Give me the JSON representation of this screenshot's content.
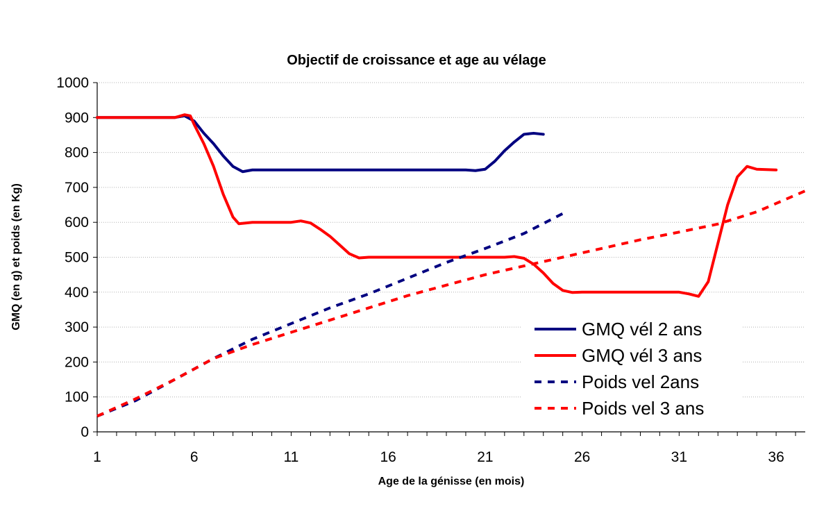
{
  "chart_data": {
    "type": "line",
    "title": "Objectif de croissance et age au vélage",
    "xlabel": "Age de la génisse (en mois)",
    "ylabel": "GMQ (en g) et poids (en Kg)",
    "xlim": [
      1,
      37.5
    ],
    "ylim": [
      0,
      1000
    ],
    "x_ticks": [
      1,
      6,
      11,
      16,
      21,
      26,
      31,
      36
    ],
    "y_ticks": [
      0,
      100,
      200,
      300,
      400,
      500,
      600,
      700,
      800,
      900,
      1000
    ],
    "grid": "horizontal",
    "legend_position": "bottom-right",
    "series": [
      {
        "name": "GMQ vél 2 ans",
        "color": "#000080",
        "style": "solid",
        "points": [
          [
            1,
            900
          ],
          [
            5,
            900
          ],
          [
            5.5,
            905
          ],
          [
            6,
            890
          ],
          [
            6.5,
            855
          ],
          [
            7,
            825
          ],
          [
            7.5,
            790
          ],
          [
            8,
            760
          ],
          [
            8.5,
            745
          ],
          [
            9,
            750
          ],
          [
            20,
            750
          ],
          [
            20.5,
            748
          ],
          [
            21,
            752
          ],
          [
            21.5,
            775
          ],
          [
            22,
            805
          ],
          [
            22.5,
            830
          ],
          [
            23,
            852
          ],
          [
            23.5,
            855
          ],
          [
            24,
            852
          ]
        ]
      },
      {
        "name": "GMQ vél 3 ans",
        "color": "#ff0000",
        "style": "solid",
        "points": [
          [
            1,
            900
          ],
          [
            5,
            900
          ],
          [
            5.5,
            908
          ],
          [
            5.8,
            905
          ],
          [
            6,
            880
          ],
          [
            6.5,
            825
          ],
          [
            7,
            760
          ],
          [
            7.5,
            680
          ],
          [
            8,
            615
          ],
          [
            8.3,
            596
          ],
          [
            9,
            600
          ],
          [
            11,
            600
          ],
          [
            11.5,
            604
          ],
          [
            12,
            598
          ],
          [
            12.5,
            580
          ],
          [
            13,
            560
          ],
          [
            13.5,
            535
          ],
          [
            14,
            510
          ],
          [
            14.5,
            498
          ],
          [
            15,
            500
          ],
          [
            22,
            500
          ],
          [
            22.5,
            502
          ],
          [
            23,
            497
          ],
          [
            23.5,
            480
          ],
          [
            24,
            455
          ],
          [
            24.5,
            425
          ],
          [
            25,
            405
          ],
          [
            25.5,
            399
          ],
          [
            26,
            400
          ],
          [
            31,
            400
          ],
          [
            31.5,
            395
          ],
          [
            32,
            388
          ],
          [
            32.5,
            430
          ],
          [
            33,
            540
          ],
          [
            33.5,
            650
          ],
          [
            34,
            730
          ],
          [
            34.5,
            760
          ],
          [
            35,
            752
          ],
          [
            36,
            750
          ]
        ]
      },
      {
        "name": "Poids vel 2ans",
        "color": "#000080",
        "style": "dashed",
        "points": [
          [
            1,
            45
          ],
          [
            3,
            90
          ],
          [
            5,
            150
          ],
          [
            7,
            210
          ],
          [
            9,
            265
          ],
          [
            11,
            310
          ],
          [
            13,
            355
          ],
          [
            15,
            395
          ],
          [
            17,
            440
          ],
          [
            19,
            485
          ],
          [
            21,
            525
          ],
          [
            23,
            568
          ],
          [
            25,
            625
          ]
        ]
      },
      {
        "name": "Poids vel 3 ans",
        "color": "#ff0000",
        "style": "dashed",
        "points": [
          [
            1,
            45
          ],
          [
            3,
            95
          ],
          [
            5,
            150
          ],
          [
            7,
            210
          ],
          [
            9,
            250
          ],
          [
            11,
            285
          ],
          [
            13,
            320
          ],
          [
            15,
            355
          ],
          [
            17,
            390
          ],
          [
            19,
            420
          ],
          [
            21,
            450
          ],
          [
            23,
            475
          ],
          [
            25,
            500
          ],
          [
            27,
            525
          ],
          [
            29,
            550
          ],
          [
            31,
            572
          ],
          [
            33,
            595
          ],
          [
            35,
            630
          ],
          [
            37.5,
            690
          ]
        ]
      }
    ]
  }
}
